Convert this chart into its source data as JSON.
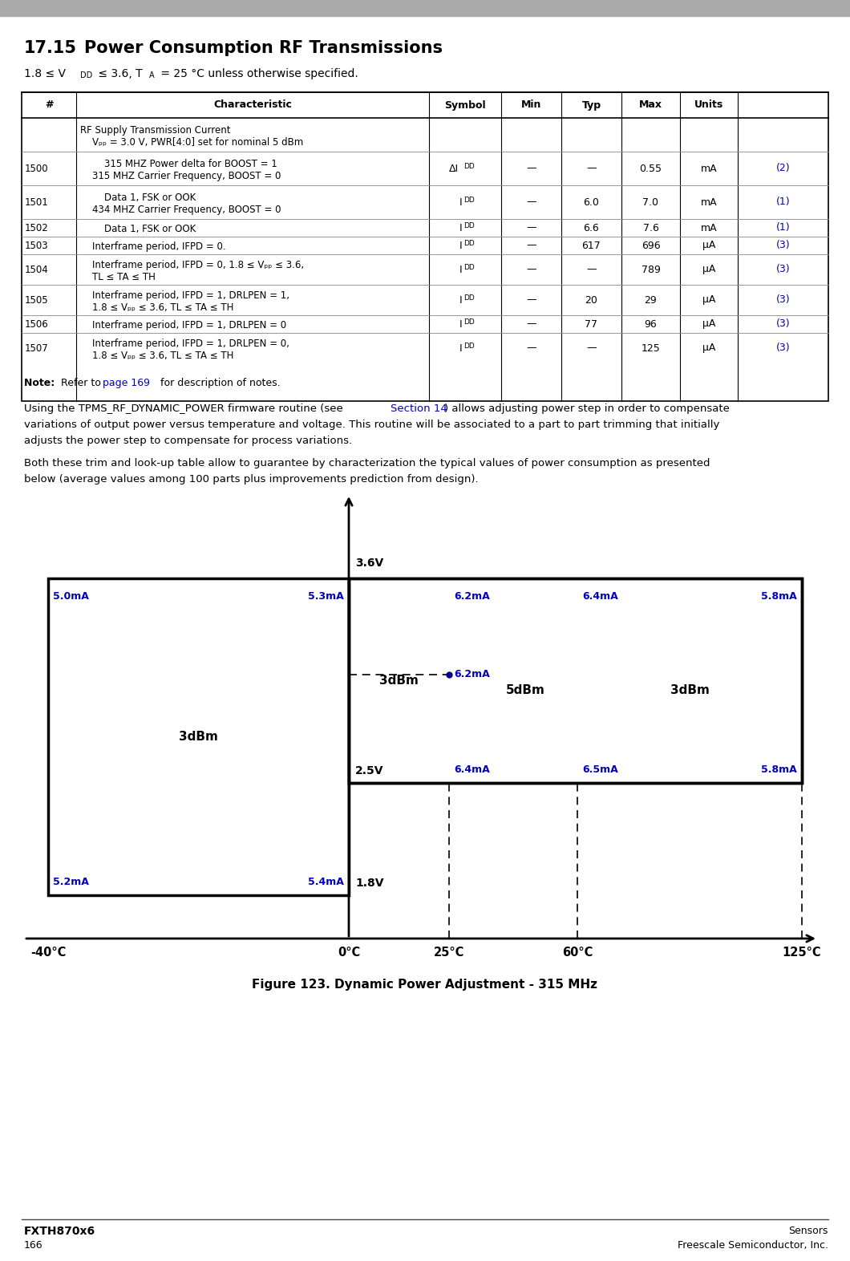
{
  "title": "17.15   Power Consumption RF Transmissions",
  "blue": "#0000BB",
  "black": "#000000",
  "gray_header": "#AAAAAA",
  "fig_caption": "Figure 123. Dynamic Power Adjustment - 315 MHz",
  "footer_left_top": "FXTH870x6",
  "footer_left_bottom": "166",
  "footer_right_top": "Sensors",
  "footer_right_bottom": "Freescale Semiconductor, Inc."
}
